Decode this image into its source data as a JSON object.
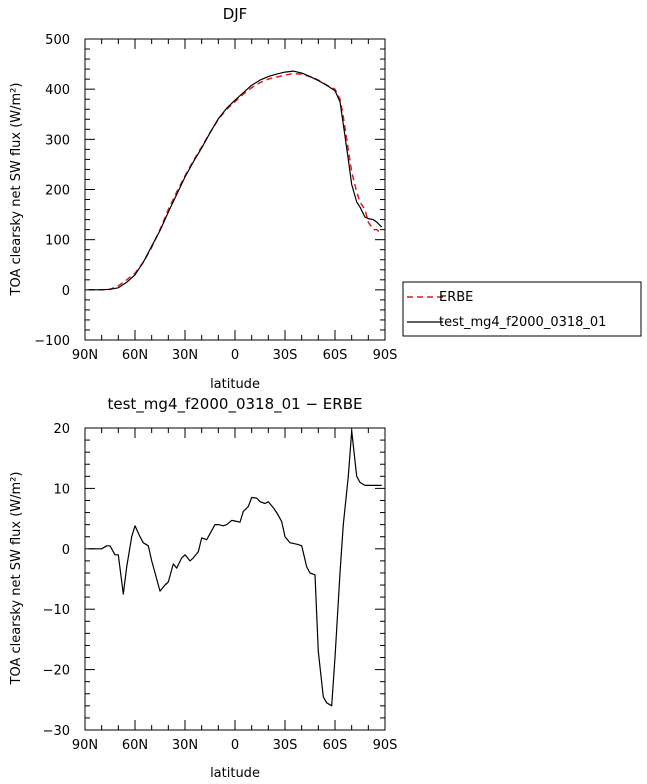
{
  "chart_data": [
    {
      "type": "line",
      "title": "DJF",
      "xlabel": "latitude",
      "ylabel": "TOA clearsky net SW flux (W/m²)",
      "xlim": [
        90,
        -90
      ],
      "ylim": [
        -100,
        500
      ],
      "x_ticks": [
        90,
        60,
        30,
        0,
        -30,
        -60,
        -90
      ],
      "x_tick_labels": [
        "90N",
        "60N",
        "30N",
        "0",
        "30S",
        "60S",
        "90S"
      ],
      "y_ticks": [
        -100,
        0,
        100,
        200,
        300,
        400,
        500
      ],
      "y_tick_labels": [
        "−100",
        "0",
        "100",
        "200",
        "300",
        "400",
        "500"
      ],
      "legend": {
        "position": "outside-right"
      },
      "series": [
        {
          "name": "ERBE",
          "color": "#e41a1c",
          "dash": "dashed",
          "x": [
            88,
            80,
            75,
            70,
            65,
            60,
            55,
            50,
            45,
            40,
            35,
            30,
            25,
            20,
            15,
            10,
            5,
            0,
            -5,
            -10,
            -15,
            -20,
            -25,
            -30,
            -35,
            -40,
            -45,
            -50,
            -55,
            -60,
            -63,
            -65,
            -68,
            -70,
            -73,
            -75,
            -78,
            -80,
            -83,
            -85,
            -88
          ],
          "y": [
            0,
            0,
            1,
            8,
            20,
            33,
            55,
            85,
            120,
            160,
            195,
            227,
            257,
            285,
            313,
            340,
            360,
            375,
            390,
            403,
            413,
            420,
            424,
            428,
            431,
            430,
            425,
            418,
            408,
            400,
            380,
            345,
            280,
            235,
            195,
            175,
            160,
            135,
            120,
            120,
            112
          ]
        },
        {
          "name": "test_mg4_f2000_0318_01",
          "color": "#000000",
          "dash": "solid",
          "x": [
            88,
            80,
            75,
            70,
            65,
            60,
            55,
            50,
            45,
            40,
            35,
            30,
            25,
            20,
            15,
            10,
            5,
            0,
            -5,
            -10,
            -15,
            -20,
            -25,
            -30,
            -35,
            -40,
            -45,
            -50,
            -55,
            -60,
            -63,
            -65,
            -68,
            -70,
            -73,
            -75,
            -78,
            -80,
            -83,
            -85,
            -88
          ],
          "y": [
            0,
            0,
            1,
            4,
            15,
            30,
            55,
            87,
            118,
            155,
            190,
            225,
            255,
            283,
            313,
            341,
            362,
            378,
            393,
            408,
            418,
            425,
            430,
            434,
            436,
            432,
            425,
            417,
            408,
            397,
            375,
            330,
            260,
            210,
            175,
            165,
            145,
            142,
            140,
            135,
            125
          ]
        }
      ]
    },
    {
      "type": "line",
      "title": "test_mg4_f2000_0318_01 − ERBE",
      "xlabel": "latitude",
      "ylabel": "TOA clearsky net SW flux (W/m²)",
      "xlim": [
        90,
        -90
      ],
      "ylim": [
        -30,
        20
      ],
      "x_ticks": [
        90,
        60,
        30,
        0,
        -30,
        -60,
        -90
      ],
      "x_tick_labels": [
        "90N",
        "60N",
        "30N",
        "0",
        "30S",
        "60S",
        "90S"
      ],
      "y_ticks": [
        -30,
        -20,
        -10,
        0,
        10,
        20
      ],
      "y_tick_labels": [
        "−30",
        "−20",
        "−10",
        "0",
        "10",
        "20"
      ],
      "series": [
        {
          "color": "#000000",
          "dash": "solid",
          "x": [
            88,
            85,
            82,
            80,
            77,
            75,
            72,
            70,
            67,
            65,
            62,
            60,
            57,
            55,
            52,
            50,
            47,
            45,
            42,
            40,
            37,
            35,
            32,
            30,
            27,
            25,
            22,
            20,
            17,
            15,
            12,
            10,
            7,
            5,
            2,
            0,
            -3,
            -5,
            -8,
            -10,
            -13,
            -15,
            -18,
            -20,
            -23,
            -25,
            -28,
            -30,
            -33,
            -35,
            -38,
            -40,
            -43,
            -45,
            -48,
            -50,
            -53,
            -55,
            -58,
            -60,
            -63,
            -65,
            -68,
            -70,
            -73,
            -75,
            -78,
            -80,
            -83,
            -85,
            -88
          ],
          "y": [
            0,
            0,
            0,
            0,
            0.5,
            0.5,
            -1,
            -1,
            -7.5,
            -3,
            2,
            3.8,
            2,
            1,
            0.5,
            -2,
            -5,
            -7,
            -6,
            -5.5,
            -2.5,
            -3.2,
            -1.5,
            -1,
            -2,
            -1.5,
            -0.5,
            1.8,
            1.5,
            2.5,
            4,
            4,
            3.8,
            4,
            4.7,
            4.6,
            4.4,
            6.2,
            7,
            8.5,
            8.4,
            7.8,
            7.5,
            7.8,
            6.8,
            6,
            4.5,
            2,
            1,
            0.9,
            0.7,
            0.5,
            -3,
            -4,
            -4.3,
            -17,
            -24.5,
            -25.5,
            -26,
            -18,
            -4,
            4,
            12,
            19.5,
            12,
            11,
            10.5,
            10.5,
            10.5,
            10.5,
            10.5
          ]
        }
      ]
    }
  ]
}
